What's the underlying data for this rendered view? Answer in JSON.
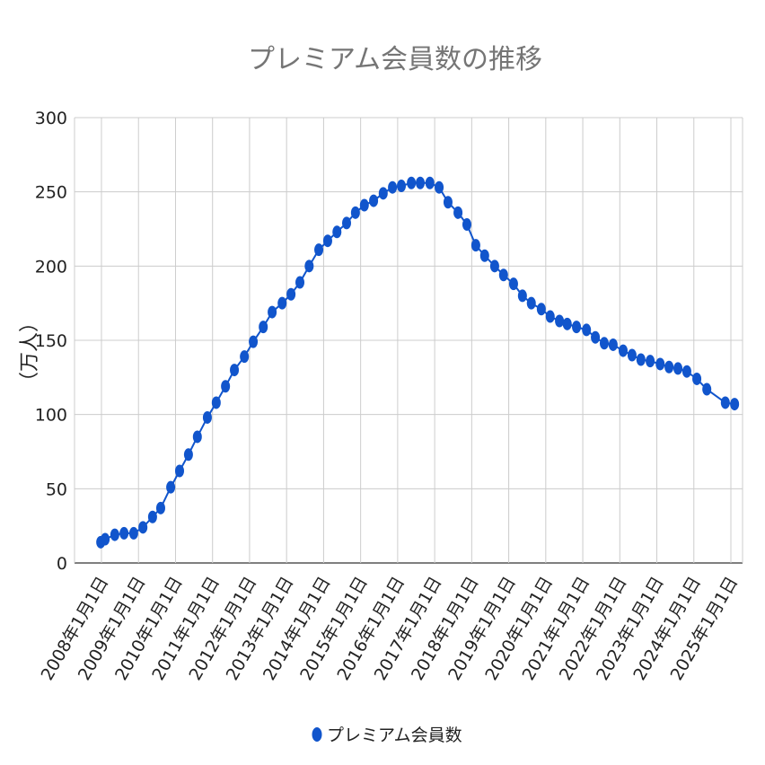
{
  "chart_data": {
    "type": "line",
    "title": "プレミアム会員数の推移",
    "xlabel": "",
    "ylabel": "（万人）",
    "ylim": [
      0,
      300
    ],
    "yticks": [
      0,
      50,
      100,
      150,
      200,
      250,
      300
    ],
    "xlim": [
      2007.85,
      2025.35
    ],
    "xticks": [
      2008,
      2009,
      2010,
      2011,
      2012,
      2013,
      2014,
      2015,
      2016,
      2017,
      2018,
      2019,
      2020,
      2021,
      2022,
      2023,
      2024,
      2025
    ],
    "xtick_labels": [
      "2008年1月1日",
      "2009年1月1日",
      "2010年1月1日",
      "2011年1月1日",
      "2012年1月1日",
      "2013年1月1日",
      "2014年1月1日",
      "2015年1月1日",
      "2016年1月1日",
      "2017年1月1日",
      "2018年1月1日",
      "2019年1月1日",
      "2020年1月1日",
      "2021年1月1日",
      "2022年1月1日",
      "2023年1月1日",
      "2024年1月1日",
      "2025年1月1日"
    ],
    "grid": true,
    "legend_position": "bottom",
    "series": [
      {
        "name": "プレミアム会員数",
        "color": "#1155cc",
        "x": [
          2007.98,
          2008.1,
          2008.36,
          2008.61,
          2008.87,
          2009.12,
          2009.38,
          2009.6,
          2009.87,
          2010.11,
          2010.35,
          2010.59,
          2010.86,
          2011.1,
          2011.35,
          2011.59,
          2011.86,
          2012.1,
          2012.37,
          2012.61,
          2012.88,
          2013.12,
          2013.36,
          2013.61,
          2013.87,
          2014.11,
          2014.36,
          2014.62,
          2014.86,
          2015.1,
          2015.35,
          2015.61,
          2015.86,
          2016.1,
          2016.37,
          2016.61,
          2016.87,
          2017.12,
          2017.36,
          2017.63,
          2017.87,
          2018.11,
          2018.35,
          2018.62,
          2018.86,
          2019.13,
          2019.37,
          2019.61,
          2019.88,
          2020.12,
          2020.37,
          2020.58,
          2020.83,
          2021.1,
          2021.34,
          2021.58,
          2021.82,
          2022.09,
          2022.33,
          2022.57,
          2022.82,
          2023.09,
          2023.33,
          2023.57,
          2023.81,
          2024.08,
          2024.35,
          2024.85,
          2025.1
        ],
        "values": [
          14,
          16,
          19,
          20,
          20,
          24,
          31,
          37,
          51,
          62,
          73,
          85,
          98,
          108,
          119,
          130,
          139,
          149,
          159,
          169,
          175,
          181,
          189,
          200,
          211,
          217,
          223,
          229,
          236,
          241,
          244,
          249,
          253,
          254,
          256,
          256,
          256,
          253,
          243,
          236,
          228,
          214,
          207,
          200,
          194,
          188,
          180,
          175,
          171,
          166,
          163,
          161,
          159,
          157,
          152,
          148,
          147,
          143,
          140,
          137,
          136,
          134,
          132,
          131,
          129,
          124,
          117,
          108,
          107
        ]
      }
    ]
  }
}
